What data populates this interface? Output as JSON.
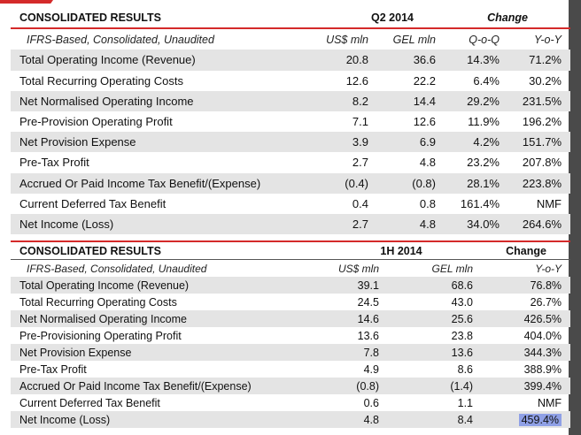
{
  "q2": {
    "title": "CONSOLIDATED RESULTS",
    "period": "Q2 2014",
    "change": "Change",
    "sub": [
      "IFRS-Based, Consolidated, Unaudited",
      "US$ mln",
      "GEL mln",
      "Q-o-Q",
      "Y-o-Y"
    ],
    "rows": [
      [
        "Total Operating Income (Revenue)",
        "20.8",
        "36.6",
        "14.3%",
        "71.2%"
      ],
      [
        "Total Recurring Operating Costs",
        "12.6",
        "22.2",
        "6.4%",
        "30.2%"
      ],
      [
        "Net Normalised Operating Income",
        "8.2",
        "14.4",
        "29.2%",
        "231.5%"
      ],
      [
        "Pre-Provision Operating Profit",
        "7.1",
        "12.6",
        "11.9%",
        "196.2%"
      ],
      [
        "Net Provision Expense",
        "3.9",
        "6.9",
        "4.2%",
        "151.7%"
      ],
      [
        "Pre-Tax Profit",
        "2.7",
        "4.8",
        "23.2%",
        "207.8%"
      ],
      [
        "Accrued Or Paid Income Tax Benefit/(Expense)",
        "(0.4)",
        "(0.8)",
        "28.1%",
        "223.8%"
      ],
      [
        "Current Deferred Tax Benefit",
        "0.4",
        "0.8",
        "161.4%",
        "NMF"
      ],
      [
        "Net Income (Loss)",
        "2.7",
        "4.8",
        "34.0%",
        "264.6%"
      ]
    ]
  },
  "h1": {
    "title": "CONSOLIDATED RESULTS",
    "period": "1H 2014",
    "change": "Change",
    "sub": [
      "IFRS-Based, Consolidated, Unaudited",
      "US$ mln",
      "GEL mln",
      "Y-o-Y"
    ],
    "rows": [
      [
        "Total Operating Income (Revenue)",
        "39.1",
        "68.6",
        "76.8%"
      ],
      [
        "Total Recurring Operating Costs",
        "24.5",
        "43.0",
        "26.7%"
      ],
      [
        "Net Normalised Operating Income",
        "14.6",
        "25.6",
        "426.5%"
      ],
      [
        "Pre-Provisioning Operating Profit",
        "13.6",
        "23.8",
        "404.0%"
      ],
      [
        "Net Provision Expense",
        "7.8",
        "13.6",
        "344.3%"
      ],
      [
        "Pre-Tax Profit",
        "4.9",
        "8.6",
        "388.9%"
      ],
      [
        "Accrued Or Paid Income Tax Benefit/(Expense)",
        "(0.8)",
        "(1.4)",
        "399.4%"
      ],
      [
        "Current Deferred Tax Benefit",
        "0.6",
        "1.1",
        "NMF"
      ],
      [
        "Net Income (Loss)",
        "4.8",
        "8.4",
        "459.4%"
      ]
    ]
  }
}
